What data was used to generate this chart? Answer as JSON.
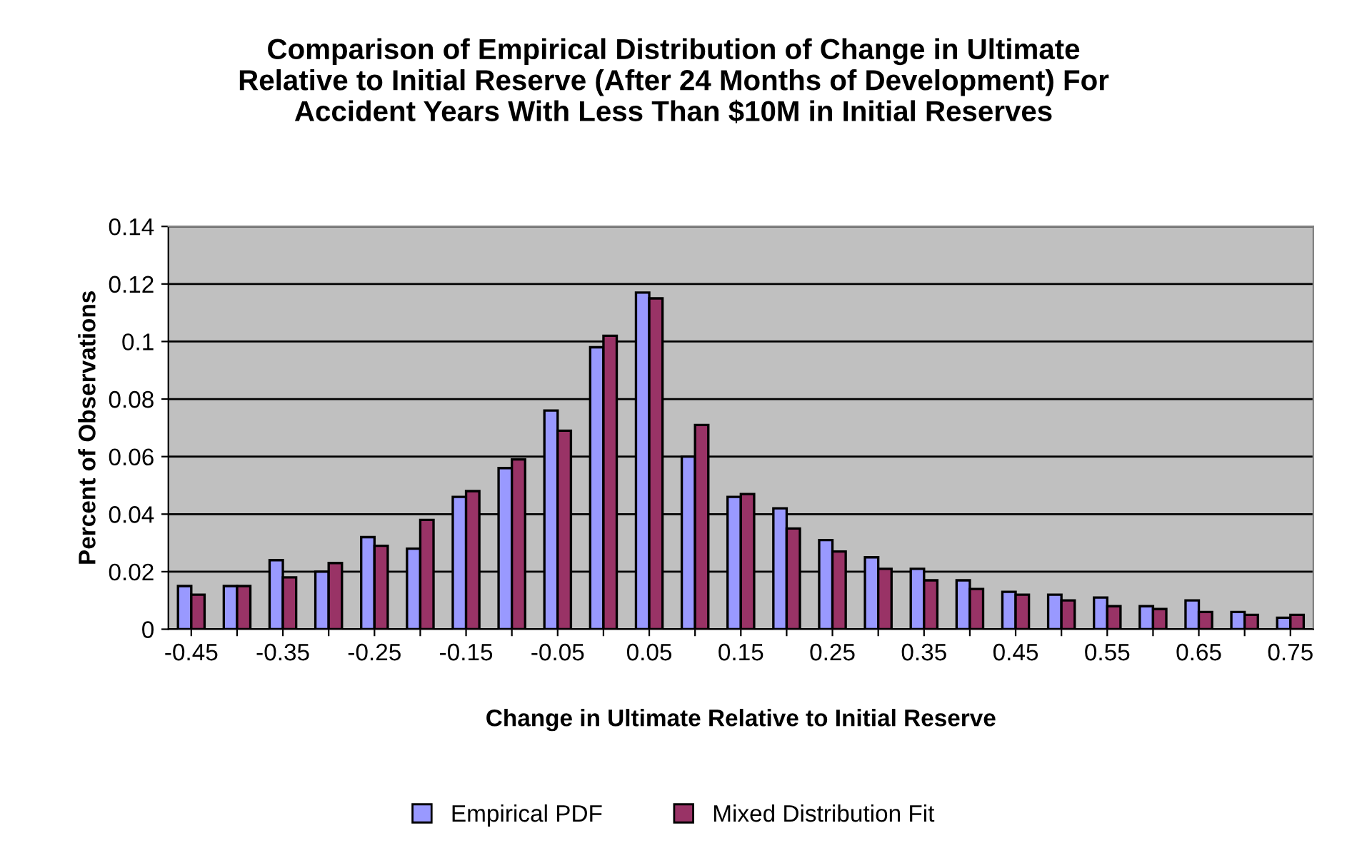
{
  "chart_data": {
    "type": "bar",
    "title": "Comparison of Empirical Distribution of Change in Ultimate\nRelative to Initial Reserve (After 24 Months of Development) For\nAccident Years With Less Than $10M in Initial Reserves",
    "xlabel": "Change in Ultimate Relative to Initial Reserve",
    "ylabel": "Percent of Observations",
    "categories": [
      "-0.45",
      null,
      "-0.35",
      null,
      "-0.25",
      null,
      "-0.15",
      null,
      "-0.05",
      null,
      "0.05",
      null,
      "0.15",
      null,
      "0.25",
      null,
      "0.35",
      null,
      "0.45",
      null,
      "0.55",
      null,
      "0.65",
      null,
      "0.75"
    ],
    "series": [
      {
        "name": "Empirical PDF",
        "color": "#9999ff",
        "values": [
          0.015,
          0.015,
          0.024,
          0.02,
          0.032,
          0.028,
          0.046,
          0.056,
          0.076,
          0.098,
          0.117,
          0.06,
          0.046,
          0.042,
          0.031,
          0.025,
          0.021,
          0.017,
          0.013,
          0.012,
          0.011,
          0.008,
          0.01,
          0.006,
          0.004
        ]
      },
      {
        "name": "Mixed Distribution Fit",
        "color": "#993366",
        "values": [
          0.012,
          0.015,
          0.018,
          0.023,
          0.029,
          0.038,
          0.048,
          0.059,
          0.069,
          0.102,
          0.115,
          0.071,
          0.047,
          0.035,
          0.027,
          0.021,
          0.017,
          0.014,
          0.012,
          0.01,
          0.008,
          0.007,
          0.006,
          0.005,
          0.005
        ]
      }
    ],
    "ylim": [
      0,
      0.14
    ],
    "yticks": [
      0,
      0.02,
      0.04,
      0.06,
      0.08,
      0.1,
      0.12,
      0.14
    ],
    "grid": "y",
    "legend": "bottom"
  }
}
